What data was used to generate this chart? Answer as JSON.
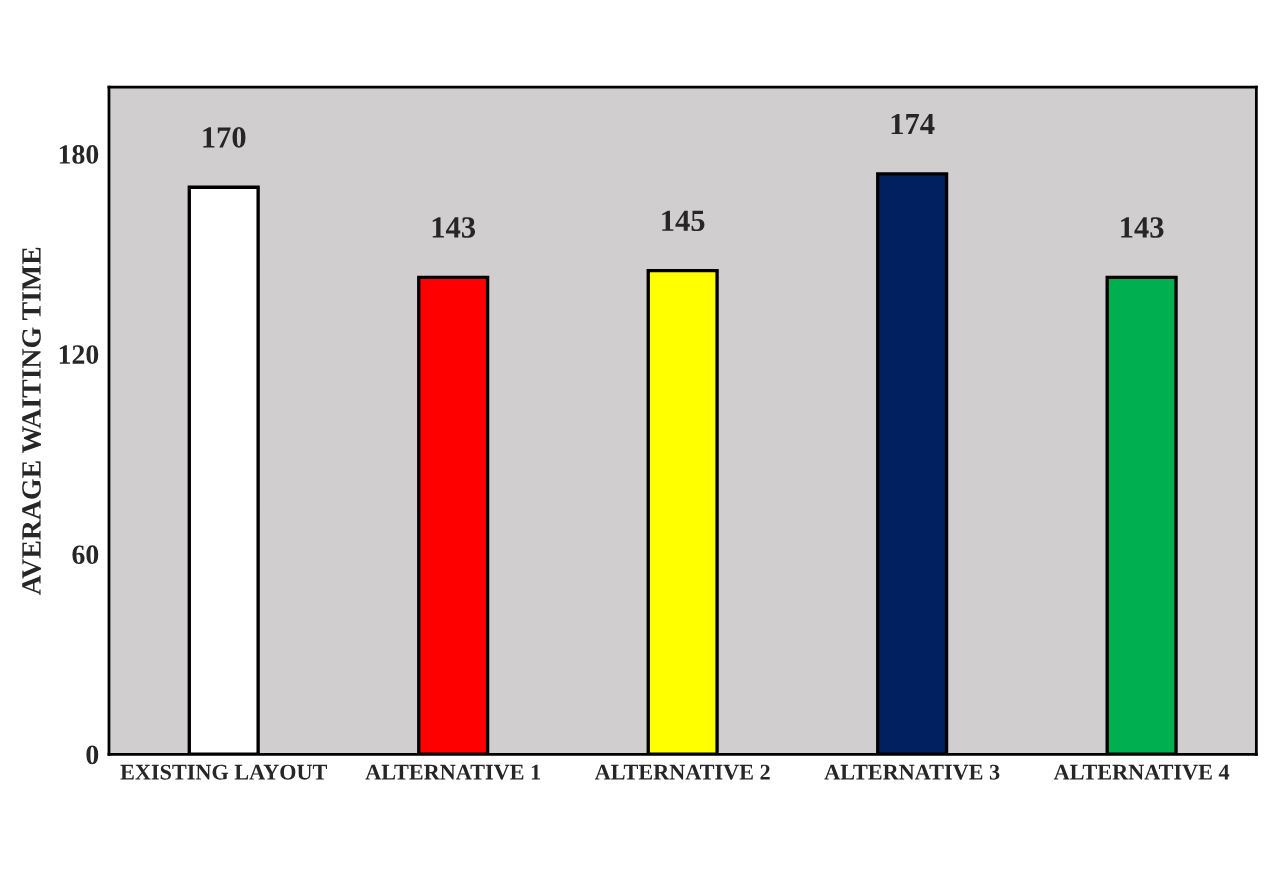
{
  "chart_data": {
    "type": "bar",
    "ylabel": "AVERAGE WAITING TIME",
    "categories": [
      "EXISTING LAYOUT",
      "ALTERNATIVE 1",
      "ALTERNATIVE 2",
      "ALTERNATIVE 3",
      "ALTERNATIVE 4"
    ],
    "values": [
      170,
      143,
      145,
      174,
      143
    ],
    "colors": [
      "#ffffff",
      "#ff0000",
      "#ffff00",
      "#002060",
      "#00b050"
    ],
    "ylim": [
      0,
      200
    ],
    "yticks": [
      0,
      60,
      120,
      180
    ],
    "data_labels": true
  }
}
